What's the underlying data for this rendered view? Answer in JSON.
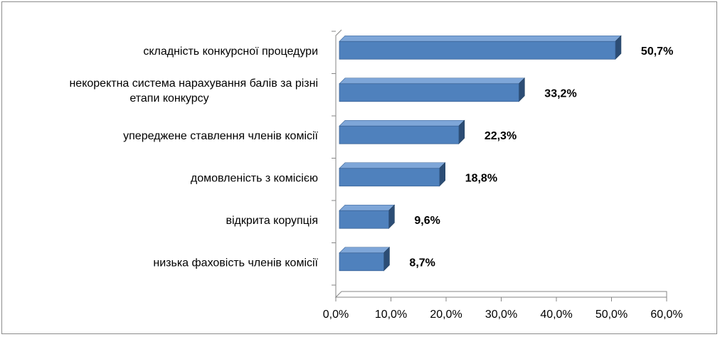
{
  "chart_data": {
    "type": "bar",
    "orientation": "horizontal",
    "categories": [
      [
        "складність конкурсної процедури"
      ],
      [
        "некоректна  система нарахування  балів за різні",
        "етапи конкурсу"
      ],
      [
        "упереджене ставлення членів комісії"
      ],
      [
        "домовленість з комісією"
      ],
      [
        "відкрита корупція"
      ],
      [
        "низька фаховість членів комісії"
      ]
    ],
    "values": [
      50.7,
      33.2,
      22.3,
      18.8,
      9.6,
      8.7
    ],
    "value_labels": [
      "50,7%",
      "33,2%",
      "22,3%",
      "18,8%",
      "9,6%",
      "8,7%"
    ],
    "x_ticks": [
      "0,0%",
      "10,0%",
      "20,0%",
      "30,0%",
      "40,0%",
      "50,0%",
      "60,0%"
    ],
    "xlim": [
      0,
      60
    ],
    "bar_color": "#4f81bd",
    "bar_top_color": "#7ea6d8",
    "bar_side_color": "#2c4d75",
    "grid": false,
    "legend": "none",
    "title": "",
    "xlabel": "",
    "ylabel": ""
  }
}
